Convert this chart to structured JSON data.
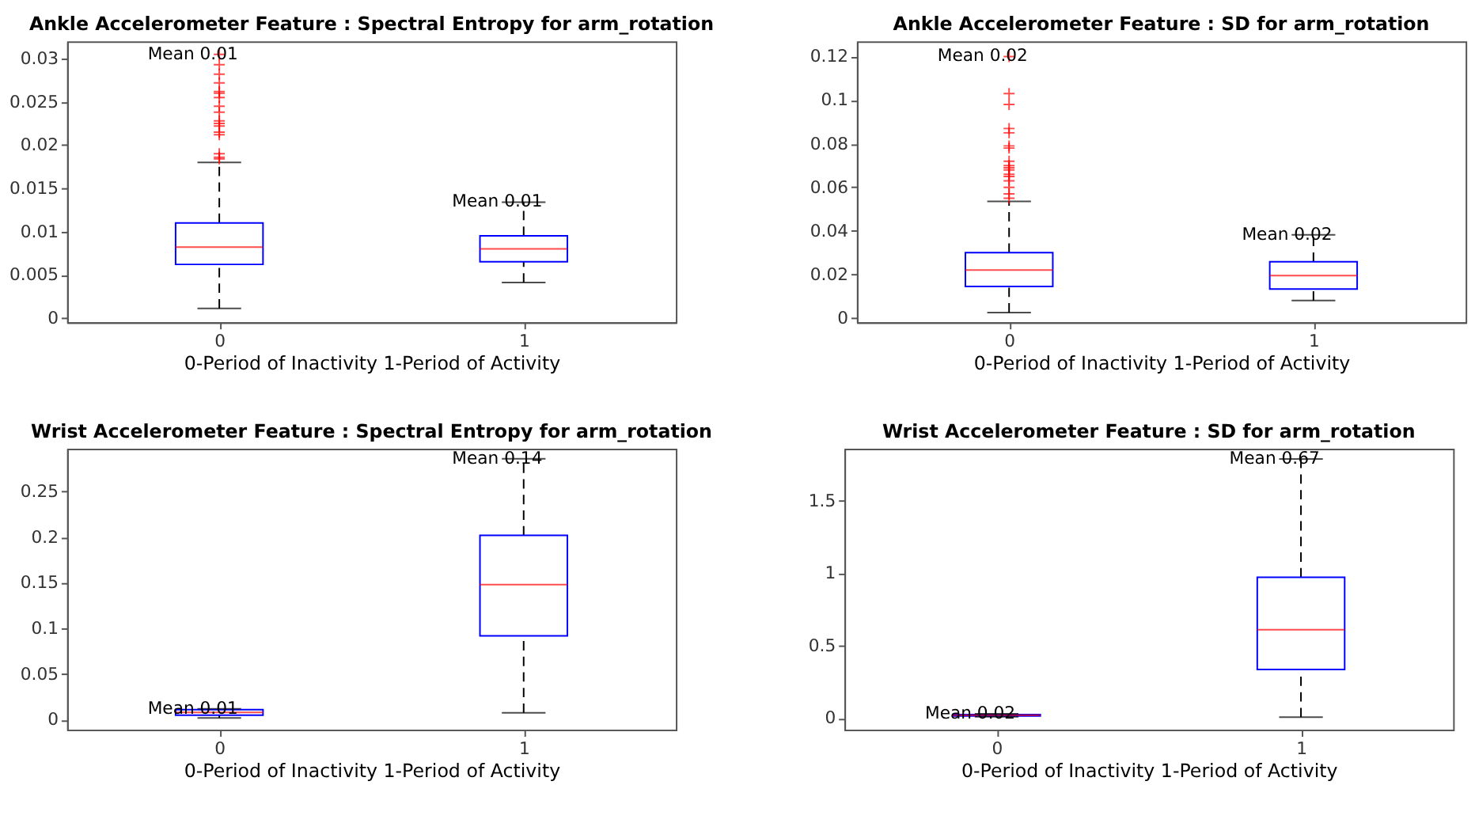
{
  "chart_data": [
    {
      "type": "box",
      "title": "Ankle Accelerometer Feature : Spectral Entropy for arm_rotation",
      "xlabel": "0-Period of Inactivity 1-Period of Activity",
      "categories": [
        "0",
        "1"
      ],
      "ylim": [
        -0.0005,
        0.032
      ],
      "yticks": [
        0,
        0.005,
        0.01,
        0.015,
        0.02,
        0.025,
        0.03
      ],
      "grid": false,
      "marker": "cross",
      "boxes": [
        {
          "low": 0.0011,
          "q1": 0.0062,
          "median": 0.0082,
          "q3": 0.011,
          "high": 0.018,
          "outliers": [
            0.0184,
            0.0186,
            0.019,
            0.0212,
            0.0215,
            0.0222,
            0.0225,
            0.0228,
            0.0238,
            0.0245,
            0.0255,
            0.026,
            0.0262,
            0.0272,
            0.0282,
            0.0293,
            0.0305
          ]
        },
        {
          "low": 0.0041,
          "q1": 0.0065,
          "median": 0.008,
          "q3": 0.0095,
          "high": 0.0134
        }
      ],
      "annotations": [
        "Mean 0.01",
        "Mean 0.01"
      ]
    },
    {
      "type": "box",
      "title": "Ankle Accelerometer Feature : SD for arm_rotation",
      "xlabel": "0-Period of Inactivity 1-Period of Activity",
      "categories": [
        "0",
        "1"
      ],
      "ylim": [
        -0.002,
        0.127
      ],
      "yticks": [
        0,
        0.02,
        0.04,
        0.06,
        0.08,
        0.1,
        0.12
      ],
      "grid": false,
      "marker": "cross",
      "boxes": [
        {
          "low": 0.0025,
          "q1": 0.0145,
          "median": 0.022,
          "q3": 0.03,
          "high": 0.0535,
          "outliers": [
            0.055,
            0.057,
            0.06,
            0.063,
            0.065,
            0.066,
            0.068,
            0.069,
            0.07,
            0.072,
            0.078,
            0.079,
            0.085,
            0.087,
            0.098,
            0.103,
            0.12
          ]
        },
        {
          "low": 0.008,
          "q1": 0.0133,
          "median": 0.0195,
          "q3": 0.0258,
          "high": 0.0382
        }
      ],
      "annotations": [
        "Mean 0.02",
        "Mean 0.02"
      ]
    },
    {
      "type": "box",
      "title": "Wrist Accelerometer Feature : Spectral Entropy for arm_rotation",
      "xlabel": "0-Period of Inactivity 1-Period of Activity",
      "categories": [
        "0",
        "1"
      ],
      "ylim": [
        -0.011,
        0.297
      ],
      "yticks": [
        0,
        0.05,
        0.1,
        0.15,
        0.2,
        0.25
      ],
      "grid": false,
      "marker": "cross",
      "boxes": [
        {
          "low": 0.002,
          "q1": 0.005,
          "median": 0.008,
          "q3": 0.011,
          "high": 0.012
        },
        {
          "low": 0.0075,
          "q1": 0.092,
          "median": 0.148,
          "q3": 0.202,
          "high": 0.286
        }
      ],
      "annotations": [
        "Mean 0.01",
        "Mean 0.14"
      ]
    },
    {
      "type": "box",
      "title": "Wrist Accelerometer Feature : SD for arm_rotation",
      "xlabel": "0-Period of Inactivity 1-Period of Activity",
      "categories": [
        "0",
        "1"
      ],
      "ylim": [
        -0.08,
        1.86
      ],
      "yticks": [
        0,
        0.5,
        1,
        1.5
      ],
      "grid": false,
      "marker": "cross",
      "boxes": [
        {
          "low": 0.01,
          "q1": 0.015,
          "median": 0.02,
          "q3": 0.025,
          "high": 0.03
        },
        {
          "low": 0.007,
          "q1": 0.336,
          "median": 0.61,
          "q3": 0.972,
          "high": 1.79
        }
      ],
      "annotations": [
        "Mean 0.02",
        "Mean 0.67"
      ]
    }
  ]
}
